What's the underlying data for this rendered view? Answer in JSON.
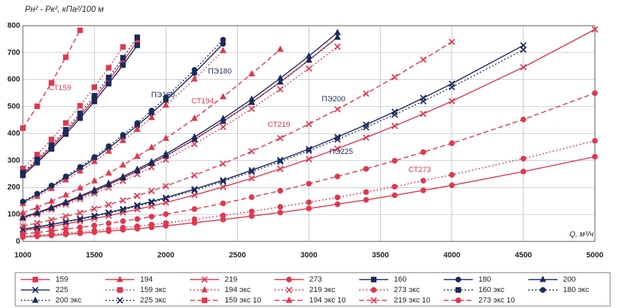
{
  "chart_data": {
    "type": "line",
    "y_label": "Pн² - Pк², кПа²/100 м",
    "x_label": "Q, м³/ч",
    "annotations": [
      "СТ159",
      "ПЭ160",
      "ПЭ180",
      "СТ194",
      "ПЭ200",
      "СТ219",
      "ПЭ225",
      "СТ273"
    ],
    "x": [
      1000,
      1100,
      1200,
      1300,
      1400,
      1500,
      1600,
      1700,
      1800,
      1900,
      2000,
      2200,
      2400,
      2600,
      2800,
      3000,
      3200,
      3400,
      3600,
      3800,
      4000,
      4500,
      5000
    ],
    "xlim": [
      1000,
      5000
    ],
    "xticks": [
      1000,
      1500,
      2000,
      2500,
      3000,
      3500,
      4000,
      4500,
      5000
    ],
    "ylim": [
      0,
      800
    ],
    "yticks": [
      0,
      100,
      200,
      300,
      400,
      500,
      600,
      700,
      800
    ],
    "grid": true,
    "series": [
      {
        "name": "159",
        "color": "#e0384e",
        "dash": "solid",
        "marker": "square",
        "values": [
          250,
          298,
          350,
          406,
          466,
          529,
          597,
          667,
          742,
          null,
          null,
          null,
          null,
          null,
          null,
          null,
          null,
          null,
          null,
          null,
          null,
          null,
          null
        ]
      },
      {
        "name": "194",
        "color": "#e0384e",
        "dash": "solid",
        "marker": "triangle",
        "values": [
          88,
          105,
          123,
          143,
          164,
          186,
          210,
          235,
          261,
          289,
          317,
          378,
          445,
          515,
          591,
          672,
          757,
          null,
          null,
          null,
          null,
          null,
          null
        ]
      },
      {
        "name": "219",
        "color": "#e0384e",
        "dash": "solid",
        "marker": "x",
        "values": [
          40,
          48,
          56,
          65,
          75,
          85,
          95,
          107,
          119,
          131,
          144,
          172,
          202,
          234,
          269,
          305,
          344,
          385,
          428,
          473,
          520,
          646,
          786
        ]
      },
      {
        "name": "273",
        "color": "#e0384e",
        "dash": "solid",
        "marker": "circle",
        "values": [
          16,
          19,
          22,
          26,
          30,
          34,
          38,
          43,
          47,
          52,
          58,
          69,
          81,
          94,
          107,
          122,
          138,
          154,
          171,
          189,
          208,
          259,
          314
        ]
      },
      {
        "name": "160",
        "color": "#1b2a5c",
        "dash": "solid",
        "marker": "square",
        "values": [
          245,
          292,
          343,
          398,
          457,
          519,
          585,
          654,
          727,
          null,
          null,
          null,
          null,
          null,
          null,
          null,
          null,
          null,
          null,
          null,
          null,
          null,
          null
        ]
      },
      {
        "name": "180",
        "color": "#1b2a5c",
        "dash": "solid",
        "marker": "circle",
        "values": [
          145,
          173,
          203,
          236,
          270,
          307,
          346,
          387,
          430,
          475,
          523,
          624,
          733,
          null,
          null,
          null,
          null,
          null,
          null,
          null,
          null,
          null,
          null
        ]
      },
      {
        "name": "200",
        "color": "#1b2a5c",
        "dash": "solid",
        "marker": "triangle",
        "values": [
          90,
          107,
          126,
          146,
          168,
          191,
          215,
          240,
          267,
          295,
          324,
          387,
          455,
          527,
          605,
          687,
          774,
          null,
          null,
          null,
          null,
          null,
          null
        ]
      },
      {
        "name": "225",
        "color": "#1b2a5c",
        "dash": "solid",
        "marker": "x",
        "values": [
          45,
          54,
          63,
          73,
          84,
          95,
          107,
          120,
          134,
          148,
          162,
          194,
          227,
          264,
          302,
          343,
          387,
          433,
          481,
          532,
          585,
          727,
          null
        ]
      },
      {
        "name": "159 экс",
        "color": "#e0384e",
        "dash": "dotted",
        "marker": "square",
        "values": [
          270,
          322,
          378,
          439,
          503,
          572,
          644,
          721,
          null,
          null,
          null,
          null,
          null,
          null,
          null,
          null,
          null,
          null,
          null,
          null,
          null,
          null,
          null
        ]
      },
      {
        "name": "194 экс",
        "color": "#e0384e",
        "dash": "dotted",
        "marker": "triangle",
        "values": [
          140,
          167,
          196,
          228,
          261,
          296,
          334,
          374,
          415,
          459,
          505,
          602,
          707,
          null,
          null,
          null,
          null,
          null,
          null,
          null,
          null,
          null,
          null
        ]
      },
      {
        "name": "219 экс",
        "color": "#e0384e",
        "dash": "dotted",
        "marker": "x",
        "values": [
          84,
          100,
          118,
          137,
          157,
          178,
          200,
          224,
          249,
          275,
          303,
          361,
          424,
          492,
          564,
          641,
          722,
          null,
          null,
          null,
          null,
          null,
          null
        ]
      },
      {
        "name": "273 экс",
        "color": "#e0384e",
        "dash": "dotted",
        "marker": "circle",
        "values": [
          19,
          23,
          27,
          31,
          35,
          40,
          45,
          51,
          56,
          62,
          68,
          82,
          96,
          111,
          128,
          145,
          163,
          183,
          203,
          225,
          247,
          307,
          373
        ]
      },
      {
        "name": "160 экс",
        "color": "#1b2a5c",
        "dash": "dotted",
        "marker": "square",
        "values": [
          255,
          304,
          357,
          414,
          475,
          540,
          608,
          681,
          757,
          null,
          null,
          null,
          null,
          null,
          null,
          null,
          null,
          null,
          null,
          null,
          null,
          null,
          null
        ]
      },
      {
        "name": "180 экс",
        "color": "#1b2a5c",
        "dash": "dotted",
        "marker": "circle",
        "values": [
          148,
          177,
          207,
          241,
          276,
          313,
          353,
          395,
          439,
          485,
          534,
          636,
          748,
          null,
          null,
          null,
          null,
          null,
          null,
          null,
          null,
          null,
          null
        ]
      },
      {
        "name": "200 экс",
        "color": "#1b2a5c",
        "dash": "dotted",
        "marker": "triangle",
        "values": [
          88,
          105,
          123,
          143,
          164,
          186,
          210,
          235,
          261,
          289,
          317,
          378,
          445,
          515,
          591,
          672,
          757,
          null,
          null,
          null,
          null,
          null,
          null
        ]
      },
      {
        "name": "225 экс",
        "color": "#1b2a5c",
        "dash": "dotted",
        "marker": "x",
        "values": [
          44,
          52,
          62,
          72,
          82,
          93,
          105,
          117,
          131,
          144,
          159,
          189,
          222,
          258,
          296,
          336,
          378,
          423,
          470,
          520,
          572,
          711,
          null
        ]
      },
      {
        "name": "159 экс 10",
        "color": "#e0384e",
        "dash": "dashed",
        "marker": "square",
        "values": [
          420,
          501,
          588,
          683,
          783,
          null,
          null,
          null,
          null,
          null,
          null,
          null,
          null,
          null,
          null,
          null,
          null,
          null,
          null,
          null,
          null,
          null,
          null
        ]
      },
      {
        "name": "194 экс 10",
        "color": "#e0384e",
        "dash": "dashed",
        "marker": "triangle",
        "values": [
          106,
          126,
          149,
          172,
          198,
          224,
          253,
          283,
          315,
          348,
          382,
          456,
          536,
          621,
          712,
          null,
          null,
          null,
          null,
          null,
          null,
          null,
          null
        ]
      },
      {
        "name": "219 экс 10",
        "color": "#e0384e",
        "dash": "dashed",
        "marker": "x",
        "values": [
          57,
          68,
          80,
          93,
          106,
          121,
          136,
          152,
          169,
          187,
          205,
          245,
          288,
          334,
          383,
          435,
          490,
          548,
          609,
          674,
          740,
          null,
          null
        ]
      },
      {
        "name": "273 экс 10",
        "color": "#e0384e",
        "dash": "dashed",
        "marker": "circle",
        "values": [
          28,
          33,
          39,
          46,
          52,
          59,
          67,
          75,
          83,
          92,
          101,
          120,
          141,
          164,
          188,
          214,
          241,
          269,
          299,
          331,
          364,
          452,
          550
        ]
      }
    ]
  }
}
